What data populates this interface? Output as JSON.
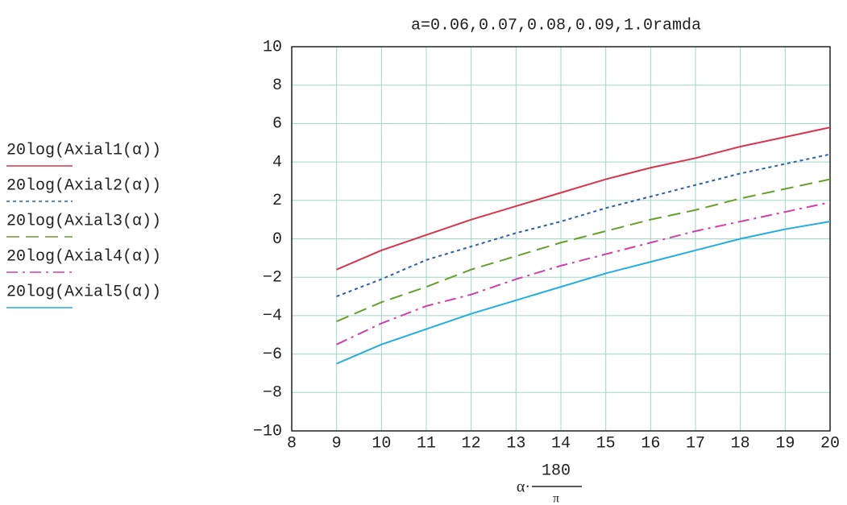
{
  "chart_data": {
    "type": "line",
    "title": "a=0.06,0.07,0.08,0.09,1.0ramda",
    "xlabel": {
      "prefix": "α·",
      "numerator": "180",
      "denominator": "π"
    },
    "x": [
      9,
      10,
      11,
      12,
      13,
      14,
      15,
      16,
      17,
      18,
      19,
      20
    ],
    "series": [
      {
        "name": "20log(Axial1(α))",
        "color": "#d9344f",
        "dash": "solid",
        "values": [
          -1.6,
          -0.6,
          0.2,
          1.0,
          1.7,
          2.4,
          3.1,
          3.7,
          4.2,
          4.8,
          5.3,
          5.8
        ]
      },
      {
        "name": "20log(Axial2(α))",
        "color": "#2f5fa8",
        "dash": "dotted",
        "values": [
          -3.0,
          -2.1,
          -1.1,
          -0.4,
          0.3,
          0.9,
          1.6,
          2.2,
          2.8,
          3.4,
          3.9,
          4.4
        ]
      },
      {
        "name": "20log(Axial3(α))",
        "color": "#6a9e2a",
        "dash": "dashed",
        "values": [
          -4.3,
          -3.3,
          -2.5,
          -1.6,
          -0.9,
          -0.2,
          0.4,
          1.0,
          1.5,
          2.1,
          2.6,
          3.1
        ]
      },
      {
        "name": "20log(Axial4(α))",
        "color": "#d23ea8",
        "dash": "dashdot",
        "values": [
          -5.5,
          -4.4,
          -3.5,
          -2.9,
          -2.1,
          -1.4,
          -0.8,
          -0.2,
          0.4,
          0.9,
          1.4,
          1.9
        ]
      },
      {
        "name": "20log(Axial5(α))",
        "color": "#22aee0",
        "dash": "solid",
        "values": [
          -6.5,
          -5.5,
          -4.7,
          -3.9,
          -3.2,
          -2.5,
          -1.8,
          -1.2,
          -0.6,
          0.0,
          0.5,
          0.9
        ]
      }
    ],
    "xlim": [
      8,
      20
    ],
    "xticks": [
      8,
      9,
      10,
      11,
      12,
      13,
      14,
      15,
      16,
      17,
      18,
      19,
      20
    ],
    "ylim": [
      -10,
      10
    ],
    "yticks": [
      {
        "value": -10,
        "label": "−10"
      },
      {
        "value": -8,
        "label": "−8"
      },
      {
        "value": -6,
        "label": "−6"
      },
      {
        "value": -4,
        "label": "−4"
      },
      {
        "value": -2,
        "label": "−2"
      },
      0,
      2,
      4,
      6,
      8,
      10
    ],
    "grid": true
  }
}
